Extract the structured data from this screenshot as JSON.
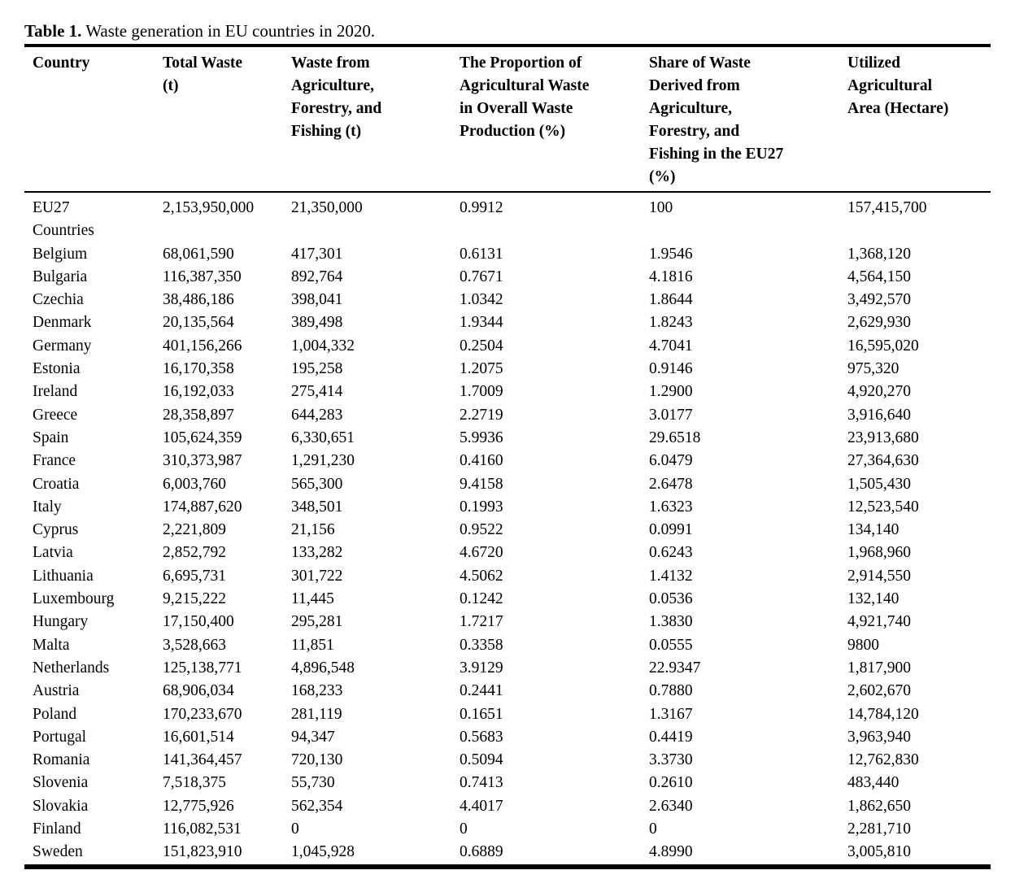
{
  "caption": {
    "label": "Table 1.",
    "text": "Waste generation in EU countries in 2020."
  },
  "table": {
    "columns": [
      "Country",
      "Total Waste\n(t)",
      "Waste from\nAgriculture,\nForestry, and\nFishing (t)",
      "The Proportion of\nAgricultural Waste\nin Overall Waste\nProduction (%)",
      "Share of Waste\nDerived from\nAgriculture,\nForestry, and\nFishing in the EU27\n(%)",
      "Utilized\nAgricultural\nArea (Hectare)"
    ],
    "rows": [
      [
        "EU27\nCountries",
        "2,153,950,000",
        "21,350,000",
        "0.9912",
        "100",
        "157,415,700"
      ],
      [
        "Belgium",
        "68,061,590",
        "417,301",
        "0.6131",
        "1.9546",
        "1,368,120"
      ],
      [
        "Bulgaria",
        "116,387,350",
        "892,764",
        "0.7671",
        "4.1816",
        "4,564,150"
      ],
      [
        "Czechia",
        "38,486,186",
        "398,041",
        "1.0342",
        "1.8644",
        "3,492,570"
      ],
      [
        "Denmark",
        "20,135,564",
        "389,498",
        "1.9344",
        "1.8243",
        "2,629,930"
      ],
      [
        "Germany",
        "401,156,266",
        "1,004,332",
        "0.2504",
        "4.7041",
        "16,595,020"
      ],
      [
        "Estonia",
        "16,170,358",
        "195,258",
        "1.2075",
        "0.9146",
        "975,320"
      ],
      [
        "Ireland",
        "16,192,033",
        "275,414",
        "1.7009",
        "1.2900",
        "4,920,270"
      ],
      [
        "Greece",
        "28,358,897",
        "644,283",
        "2.2719",
        "3.0177",
        "3,916,640"
      ],
      [
        "Spain",
        "105,624,359",
        "6,330,651",
        "5.9936",
        "29.6518",
        "23,913,680"
      ],
      [
        "France",
        "310,373,987",
        "1,291,230",
        "0.4160",
        "6.0479",
        "27,364,630"
      ],
      [
        "Croatia",
        "6,003,760",
        "565,300",
        "9.4158",
        "2.6478",
        "1,505,430"
      ],
      [
        "Italy",
        "174,887,620",
        "348,501",
        "0.1993",
        "1.6323",
        "12,523,540"
      ],
      [
        "Cyprus",
        "2,221,809",
        "21,156",
        "0.9522",
        "0.0991",
        "134,140"
      ],
      [
        "Latvia",
        "2,852,792",
        "133,282",
        "4.6720",
        "0.6243",
        "1,968,960"
      ],
      [
        "Lithuania",
        "6,695,731",
        "301,722",
        "4.5062",
        "1.4132",
        "2,914,550"
      ],
      [
        "Luxembourg",
        "9,215,222",
        "11,445",
        "0.1242",
        "0.0536",
        "132,140"
      ],
      [
        "Hungary",
        "17,150,400",
        "295,281",
        "1.7217",
        "1.3830",
        "4,921,740"
      ],
      [
        "Malta",
        "3,528,663",
        "11,851",
        "0.3358",
        "0.0555",
        "9800"
      ],
      [
        "Netherlands",
        "125,138,771",
        "4,896,548",
        "3.9129",
        "22.9347",
        "1,817,900"
      ],
      [
        "Austria",
        "68,906,034",
        "168,233",
        "0.2441",
        "0.7880",
        "2,602,670"
      ],
      [
        "Poland",
        "170,233,670",
        "281,119",
        "0.1651",
        "1.3167",
        "14,784,120"
      ],
      [
        "Portugal",
        "16,601,514",
        "94,347",
        "0.5683",
        "0.4419",
        "3,963,940"
      ],
      [
        "Romania",
        "141,364,457",
        "720,130",
        "0.5094",
        "3.3730",
        "12,762,830"
      ],
      [
        "Slovenia",
        "7,518,375",
        "55,730",
        "0.7413",
        "0.2610",
        "483,440"
      ],
      [
        "Slovakia",
        "12,775,926",
        "562,354",
        "4.4017",
        "2.6340",
        "1,862,650"
      ],
      [
        "Finland",
        "116,082,531",
        "0",
        "0",
        "0",
        "2,281,710"
      ],
      [
        "Sweden",
        "151,823,910",
        "1,045,928",
        "0.6889",
        "4.8990",
        "3,005,810"
      ]
    ]
  }
}
